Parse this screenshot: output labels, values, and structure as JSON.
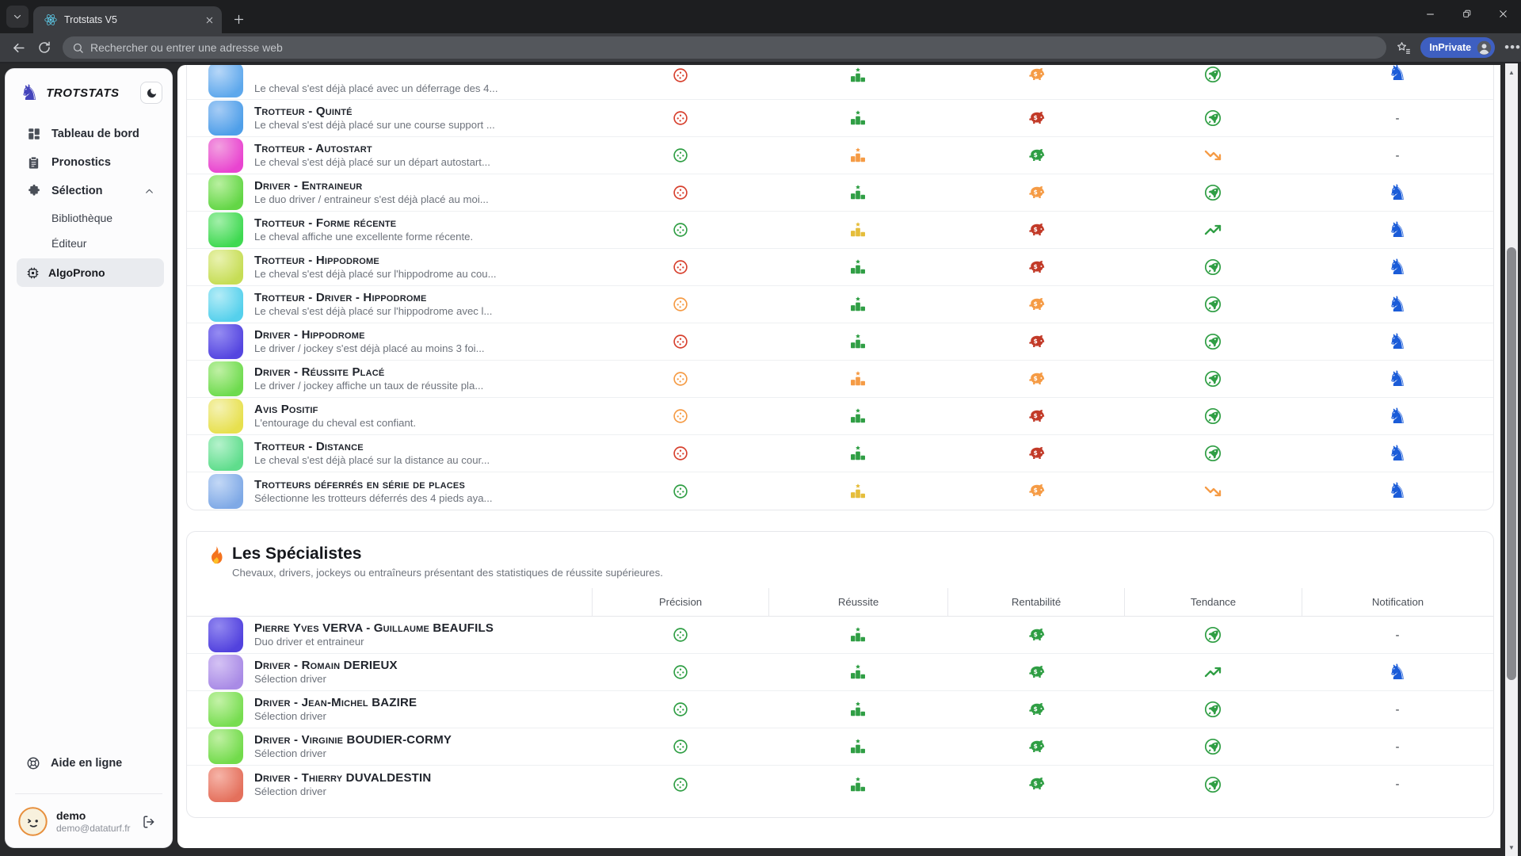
{
  "browser": {
    "tab_title": "Trotstats V5",
    "address_placeholder": "Rechercher ou entrer une adresse web",
    "profile_label": "InPrivate"
  },
  "sidebar": {
    "brand": "TROTSTATS",
    "items": [
      "Tableau de bord",
      "Pronostics",
      "Sélection"
    ],
    "sub_items": [
      "Bibliothèque",
      "Éditeur",
      "AlgoProno"
    ],
    "help_label": "Aide en ligne",
    "user_name": "demo",
    "user_email": "demo@dataturf.fr"
  },
  "columns": [
    "Précision",
    "Réussite",
    "Rentabilité",
    "Tendance",
    "Notification"
  ],
  "algos": {
    "rows": [
      {
        "partial": true,
        "title": "",
        "subtitle": "Le cheval s'est déjà placé avec un déferrage des 4...",
        "swatch": [
          "#b7d7f8",
          "#5ea8ec"
        ],
        "precision": "red",
        "reussite": "green",
        "rentabilite": "orange",
        "tendance": "rocket",
        "notification": "knight"
      },
      {
        "title": "Trotteur - Quinté",
        "subtitle": "Le cheval s'est déjà placé sur une course support ...",
        "swatch": [
          "#a6ccf5",
          "#4f9fe9"
        ],
        "precision": "red",
        "reussite": "green",
        "rentabilite": "pigred",
        "tendance": "rocket",
        "notification": "dash"
      },
      {
        "title": "Trotteur - Autostart",
        "subtitle": "Le cheval s'est déjà placé sur un départ autostart...",
        "swatch": [
          "#f2a0e0",
          "#e944d0"
        ],
        "precision": "green",
        "reussite": "orange",
        "rentabilite": "green",
        "tendance": "trend-down",
        "notification": "dash"
      },
      {
        "title": "Driver - Entraineur",
        "subtitle": "Le duo driver / entraineur s'est déjà placé au moi...",
        "swatch": [
          "#b9f0a0",
          "#63d646"
        ],
        "precision": "red",
        "reussite": "green",
        "rentabilite": "orange",
        "tendance": "rocket",
        "notification": "knight"
      },
      {
        "title": "Trotteur - Forme récente",
        "subtitle": "Le cheval affiche une excellente forme récente.",
        "swatch": [
          "#a2efa9",
          "#3fd951"
        ],
        "precision": "green",
        "reussite": "yellow",
        "rentabilite": "pigred",
        "tendance": "trend-up",
        "notification": "knight"
      },
      {
        "title": "Trotteur - Hippodrome",
        "subtitle": "Le cheval s'est déjà placé sur l'hippodrome au cou...",
        "swatch": [
          "#e9f2b0",
          "#c6dd55"
        ],
        "precision": "red",
        "reussite": "green",
        "rentabilite": "pigred",
        "tendance": "rocket",
        "notification": "knight"
      },
      {
        "title": "Trotteur - Driver - Hippodrome",
        "subtitle": "Le cheval s'est déjà placé sur l'hippodrome avec l...",
        "swatch": [
          "#b3ecf7",
          "#55d0ec"
        ],
        "precision": "orange",
        "reussite": "green",
        "rentabilite": "orange",
        "tendance": "rocket",
        "notification": "knight"
      },
      {
        "title": "Driver - Hippodrome",
        "subtitle": "Le driver / jockey s'est déjà placé au moins 3 foi...",
        "swatch": [
          "#958cf2",
          "#5546e0"
        ],
        "precision": "red",
        "reussite": "green",
        "rentabilite": "pigred",
        "tendance": "rocket",
        "notification": "knight"
      },
      {
        "title": "Driver - Réussite Placé",
        "subtitle": "Le driver / jockey affiche un taux de réussite pla...",
        "swatch": [
          "#c0f0a5",
          "#6edb4e"
        ],
        "precision": "orange",
        "reussite": "orange",
        "rentabilite": "orange",
        "tendance": "rocket",
        "notification": "knight"
      },
      {
        "title": "Avis Positif",
        "subtitle": "L'entourage du cheval est confiant.",
        "swatch": [
          "#f5f2b4",
          "#e7e04e"
        ],
        "precision": "orange",
        "reussite": "green",
        "rentabilite": "pigred",
        "tendance": "rocket",
        "notification": "knight"
      },
      {
        "title": "Trotteur - Distance",
        "subtitle": "Le cheval s'est déjà placé sur la distance au cour...",
        "swatch": [
          "#b5f2cc",
          "#5fdd8c"
        ],
        "precision": "red",
        "reussite": "green",
        "rentabilite": "pigred",
        "tendance": "rocket",
        "notification": "knight"
      },
      {
        "title": "Trotteurs déferrés en série de places",
        "subtitle": "Sélectionne les trotteurs déferrés des 4 pieds aya...",
        "swatch": [
          "#c3d8f6",
          "#7fa9e6"
        ],
        "precision": "green",
        "reussite": "yellow",
        "rentabilite": "orange",
        "tendance": "trend-down",
        "notification": "knight"
      }
    ]
  },
  "specialists": {
    "title": "Les Spécialistes",
    "subtitle": "Chevaux, drivers, jockeys ou entraîneurs présentant des statistiques de réussite supérieures.",
    "rows": [
      {
        "title": "Pierre Yves VERVA - Guillaume BEAUFILS",
        "subtitle": "Duo driver et entraineur",
        "swatch": [
          "#9288f0",
          "#5242de"
        ],
        "precision": "green",
        "reussite": "green",
        "rentabilite": "green",
        "tendance": "rocket",
        "notification": "dash"
      },
      {
        "title": "Driver - Romain DERIEUX",
        "subtitle": "Sélection driver",
        "swatch": [
          "#d4c2f4",
          "#a98be6"
        ],
        "precision": "green",
        "reussite": "green",
        "rentabilite": "green",
        "tendance": "trend-up",
        "notification": "knight"
      },
      {
        "title": "Driver - Jean-Michel BAZIRE",
        "subtitle": "Sélection driver",
        "swatch": [
          "#c4f2a8",
          "#77dd50"
        ],
        "precision": "green",
        "reussite": "green",
        "rentabilite": "green",
        "tendance": "rocket",
        "notification": "dash"
      },
      {
        "title": "Driver - Virginie BOUDIER-CORMY",
        "subtitle": "Sélection driver",
        "swatch": [
          "#bff0a2",
          "#72db4b"
        ],
        "precision": "green",
        "reussite": "green",
        "rentabilite": "green",
        "tendance": "rocket",
        "notification": "dash"
      },
      {
        "title": "Driver - Thierry DUVALDESTIN",
        "subtitle": "Sélection driver",
        "swatch": [
          "#f6b4a8",
          "#e4705c"
        ],
        "precision": "green",
        "reussite": "green",
        "rentabilite": "green",
        "tendance": "rocket",
        "notification": "dash"
      }
    ]
  }
}
